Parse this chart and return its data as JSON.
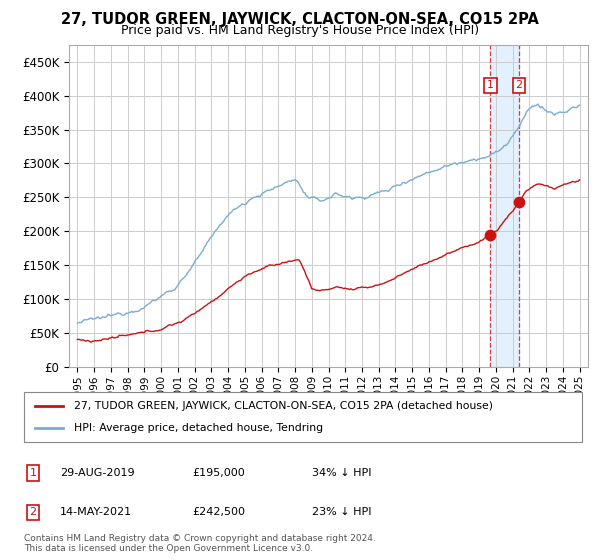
{
  "title": "27, TUDOR GREEN, JAYWICK, CLACTON-ON-SEA, CO15 2PA",
  "subtitle": "Price paid vs. HM Land Registry's House Price Index (HPI)",
  "legend_line1": "27, TUDOR GREEN, JAYWICK, CLACTON-ON-SEA, CO15 2PA (detached house)",
  "legend_line2": "HPI: Average price, detached house, Tendring",
  "annotation1": {
    "label": "1",
    "date": "29-AUG-2019",
    "price": "£195,000",
    "note": "34% ↓ HPI",
    "year": 2019.66,
    "value": 195000
  },
  "annotation2": {
    "label": "2",
    "date": "14-MAY-2021",
    "price": "£242,500",
    "note": "23% ↓ HPI",
    "year": 2021.37,
    "value": 242500
  },
  "footer": "Contains HM Land Registry data © Crown copyright and database right 2024.\nThis data is licensed under the Open Government Licence v3.0.",
  "hpi_color": "#7aadcf",
  "price_color": "#cc1111",
  "point_color": "#cc1111",
  "annotation_box_color": "#cc1111",
  "vline_color": "#cc1111",
  "highlight_color": "#ddeeff",
  "grid_color": "#cccccc",
  "bg_color": "#ffffff",
  "ylim": [
    0,
    475000
  ],
  "yticks": [
    0,
    50000,
    100000,
    150000,
    200000,
    250000,
    300000,
    350000,
    400000,
    450000
  ],
  "xmin": 1994.5,
  "xmax": 2025.5
}
